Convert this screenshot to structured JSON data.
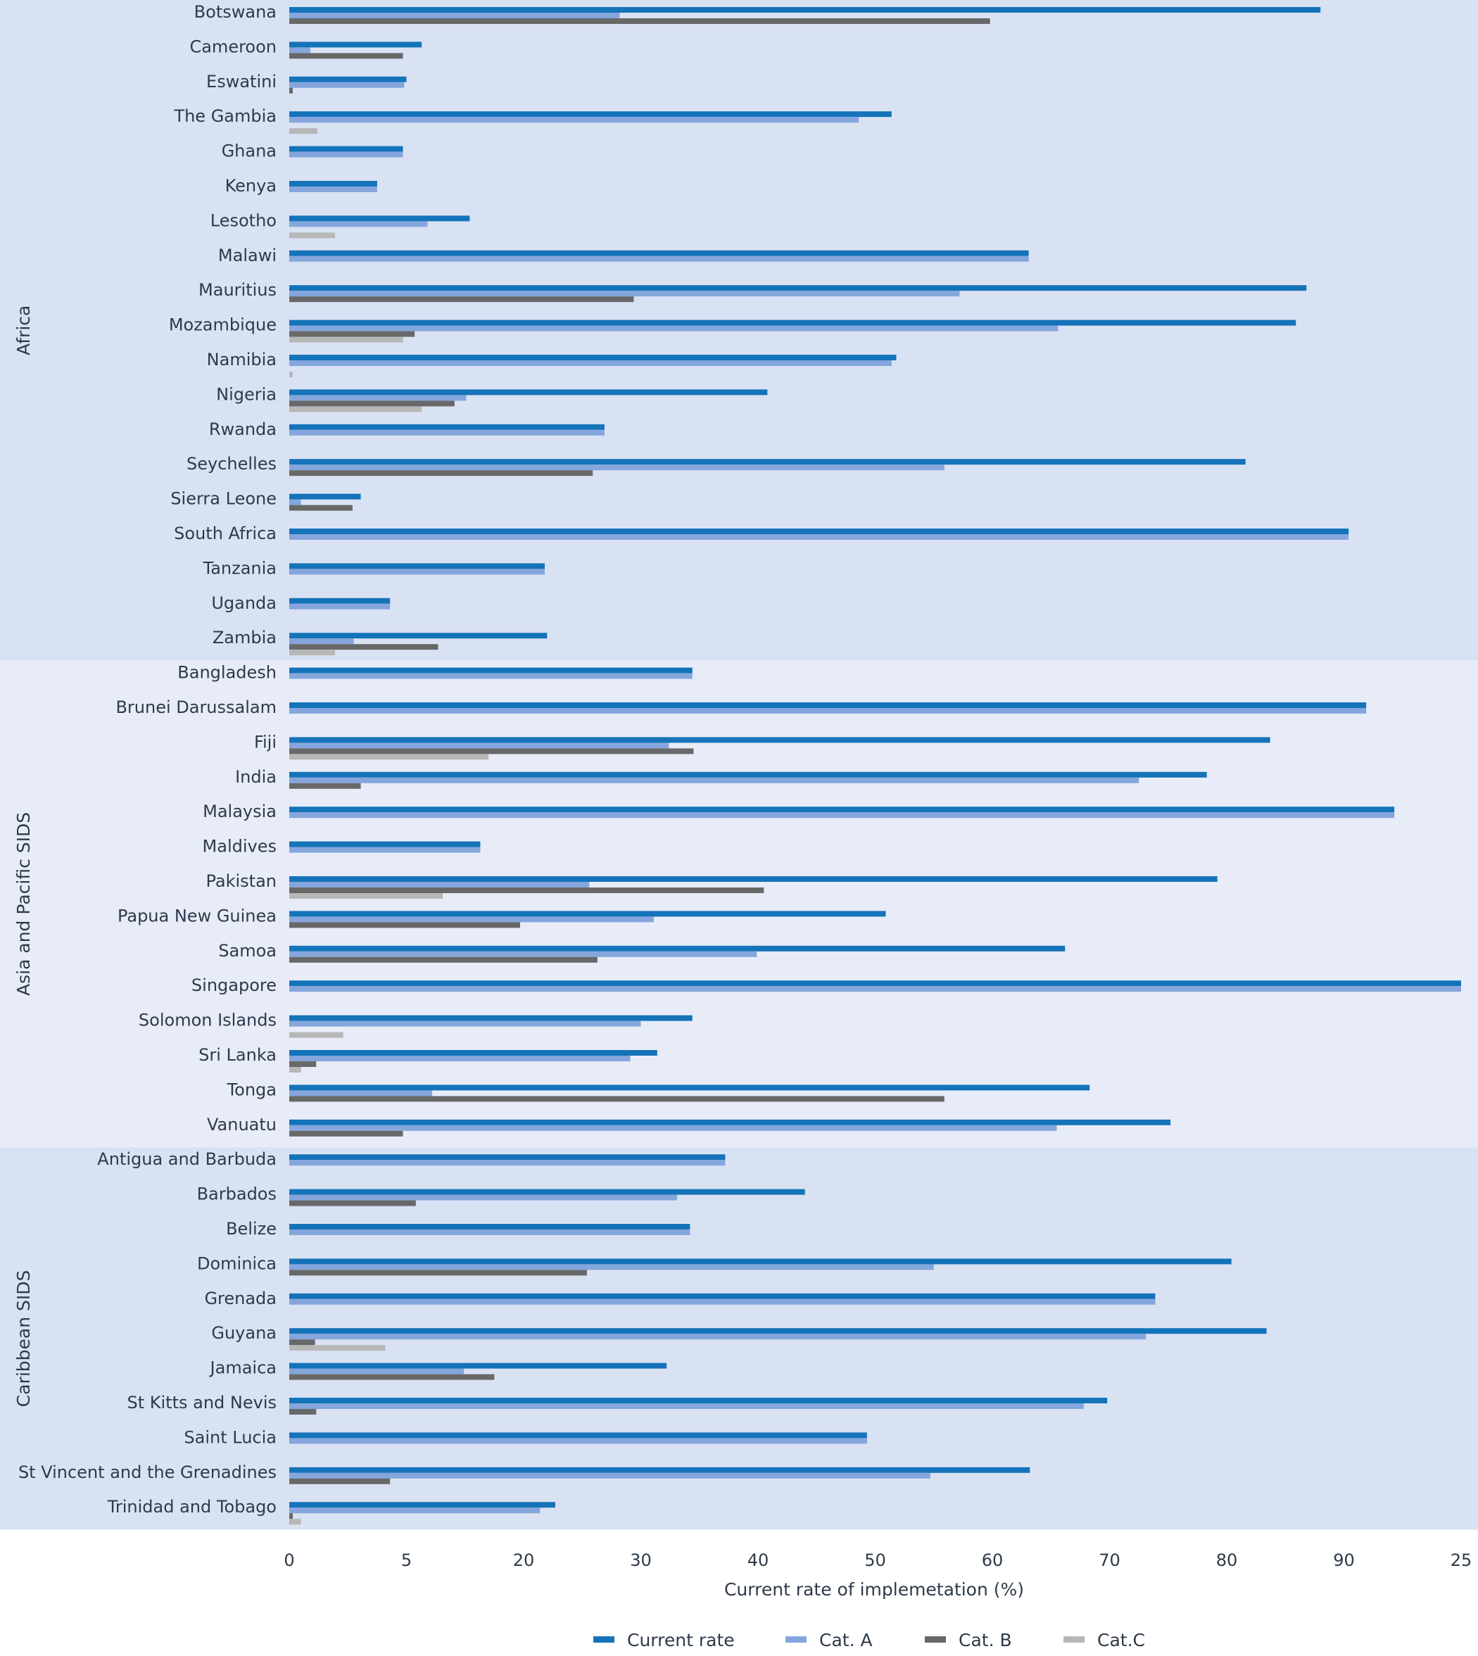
{
  "chart_data": {
    "type": "bar",
    "orientation": "horizontal",
    "xlabel": "Current rate of implemetation (%)",
    "ylabel": "",
    "xlim": [
      0,
      100
    ],
    "grid": false,
    "legend_position": "bottom",
    "x_ticks": [
      "0",
      "5",
      "20",
      "30",
      "40",
      "50",
      "60",
      "70",
      "80",
      "90",
      "25"
    ],
    "series": [
      {
        "name": "Current rate",
        "color": "#1473b9"
      },
      {
        "name": "Cat. A",
        "color": "#84a6dc"
      },
      {
        "name": "Cat. B",
        "color": "#686868"
      },
      {
        "name": "Cat.C",
        "color": "#b7b7b7"
      }
    ],
    "regions": [
      {
        "name": "Africa",
        "band_color": "#d9e2f3",
        "countries": [
          {
            "name": "Botswana",
            "values": [
              88,
              28.2,
              59.8,
              0
            ]
          },
          {
            "name": "Cameroon",
            "values": [
              11.3,
              1.8,
              9.7,
              0
            ]
          },
          {
            "name": "Eswatini",
            "values": [
              10,
              9.8,
              0.3,
              0
            ]
          },
          {
            "name": "The Gambia",
            "values": [
              51.4,
              48.6,
              0,
              2.4
            ]
          },
          {
            "name": "Ghana",
            "values": [
              9.7,
              9.7,
              0,
              0
            ]
          },
          {
            "name": "Kenya",
            "values": [
              7.5,
              7.5,
              0,
              0
            ]
          },
          {
            "name": "Lesotho",
            "values": [
              15.4,
              11.8,
              0,
              3.9
            ]
          },
          {
            "name": "Malawi",
            "values": [
              63.1,
              63.1,
              0,
              0
            ]
          },
          {
            "name": "Mauritius",
            "values": [
              86.8,
              57.2,
              29.4,
              0
            ]
          },
          {
            "name": "Mozambique",
            "values": [
              85.9,
              65.6,
              10.7,
              9.7
            ]
          },
          {
            "name": "Namibia",
            "values": [
              51.8,
              51.4,
              0,
              0.3
            ]
          },
          {
            "name": "Nigeria",
            "values": [
              40.8,
              15.1,
              14.1,
              11.3
            ]
          },
          {
            "name": "Rwanda",
            "values": [
              26.9,
              26.9,
              0,
              0
            ]
          },
          {
            "name": "Seychelles",
            "values": [
              81.6,
              55.9,
              25.9,
              0
            ]
          },
          {
            "name": "Sierra Leone",
            "values": [
              6.1,
              1,
              5.4,
              0
            ]
          },
          {
            "name": "South Africa",
            "values": [
              90.4,
              90.4,
              0,
              0
            ]
          },
          {
            "name": "Tanzania",
            "values": [
              21.8,
              21.8,
              0,
              0
            ]
          },
          {
            "name": "Uganda",
            "values": [
              8.6,
              8.6,
              0,
              0
            ]
          },
          {
            "name": "Zambia",
            "values": [
              22,
              5.5,
              12.7,
              3.9
            ]
          }
        ]
      },
      {
        "name": "Asia and Pacific SIDS",
        "band_color": "#e7ecf8",
        "countries": [
          {
            "name": "Bangladesh",
            "values": [
              34.4,
              34.4,
              0,
              0
            ]
          },
          {
            "name": "Brunei Darussalam",
            "values": [
              91.9,
              91.9,
              0,
              0
            ]
          },
          {
            "name": "Fiji",
            "values": [
              83.7,
              32.4,
              34.5,
              17
            ]
          },
          {
            "name": "India",
            "values": [
              78.3,
              72.5,
              6.1,
              0
            ]
          },
          {
            "name": "Malaysia",
            "values": [
              94.3,
              94.3,
              0,
              0
            ]
          },
          {
            "name": "Maldives",
            "values": [
              16.3,
              16.3,
              0,
              0
            ]
          },
          {
            "name": "Pakistan",
            "values": [
              79.2,
              25.6,
              40.5,
              13.1
            ]
          },
          {
            "name": "Papua New Guinea",
            "values": [
              50.9,
              31.1,
              19.7,
              0
            ]
          },
          {
            "name": "Samoa",
            "values": [
              66.2,
              39.9,
              26.3,
              0
            ]
          },
          {
            "name": "Singapore",
            "values": [
              100,
              100,
              0,
              0
            ]
          },
          {
            "name": "Solomon Islands",
            "values": [
              34.4,
              30,
              0,
              4.6
            ]
          },
          {
            "name": "Sri Lanka",
            "values": [
              31.4,
              29.1,
              2.3,
              1
            ]
          },
          {
            "name": "Tonga",
            "values": [
              68.3,
              12.2,
              55.9,
              0
            ]
          },
          {
            "name": "Vanuatu",
            "values": [
              75.2,
              65.5,
              9.7,
              0
            ]
          }
        ]
      },
      {
        "name": "Caribbean SIDS",
        "band_color": "#d9e2f3",
        "countries": [
          {
            "name": "Antigua and Barbuda",
            "values": [
              37.2,
              37.2,
              0,
              0
            ]
          },
          {
            "name": "Barbados",
            "values": [
              44,
              33.1,
              10.8,
              0
            ]
          },
          {
            "name": "Belize",
            "values": [
              34.2,
              34.2,
              0,
              0
            ]
          },
          {
            "name": "Dominica",
            "values": [
              80.4,
              55,
              25.4,
              0
            ]
          },
          {
            "name": "Grenada",
            "values": [
              73.9,
              73.9,
              0,
              0
            ]
          },
          {
            "name": "Guyana",
            "values": [
              83.4,
              73.1,
              2.2,
              8.2
            ]
          },
          {
            "name": "Jamaica",
            "values": [
              32.2,
              14.9,
              17.5,
              0
            ]
          },
          {
            "name": "St Kitts and Nevis",
            "values": [
              69.8,
              67.8,
              2.3,
              0
            ]
          },
          {
            "name": "Saint Lucia",
            "values": [
              49.3,
              49.3,
              0,
              0
            ]
          },
          {
            "name": "St Vincent and the Grenadines",
            "values": [
              63.2,
              54.7,
              8.6,
              0
            ]
          },
          {
            "name": "Trinidad and Tobago",
            "values": [
              22.7,
              21.4,
              0.3,
              1
            ]
          }
        ]
      }
    ]
  }
}
